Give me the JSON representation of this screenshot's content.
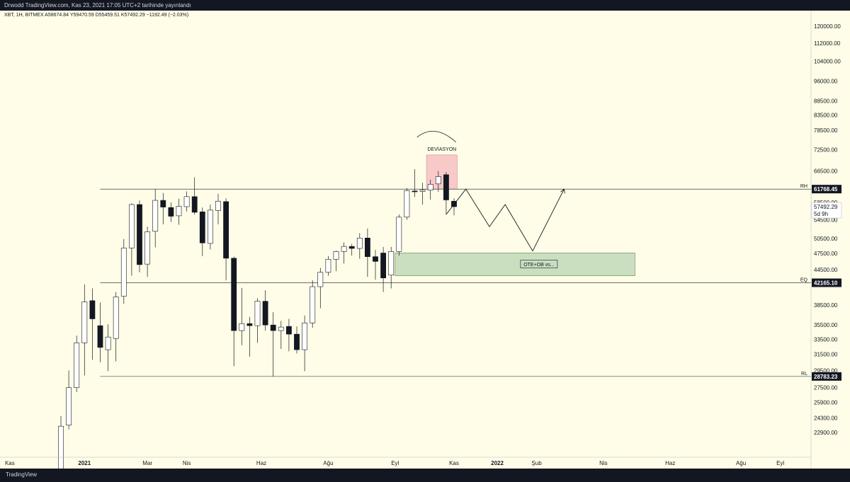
{
  "header": {
    "title": "Drwodd TradingView.com, Kas 23, 2021 17:05 UTC+2 tarihinde yayınlandı",
    "symbol_info": "XBT, 1H, BITMEX  A58674.84  Y59470.59  D55459.51  K57492.29  −1192.49 (−2.03%)"
  },
  "footer": {
    "logo": "TradingView"
  },
  "colors": {
    "background": "#fffde7",
    "bull_body": "#ffffff",
    "bear_body": "#131722",
    "deviation_zone": "#f8c9c9",
    "ote_zone": "#c9dfc0",
    "price_tag": "#131722"
  },
  "chart_data": {
    "type": "candlestick",
    "ylim": [
      21500,
      123500
    ],
    "y_ticks": [
      "120000.00",
      "112000.00",
      "104000.00",
      "96000.00",
      "88500.00",
      "83500.00",
      "78500.00",
      "72500.00",
      "66500.00",
      "58500.00",
      "54500.00",
      "50500.00",
      "47500.00",
      "44500.00",
      "38500.00",
      "35500.00",
      "33500.00",
      "31500.00",
      "29500.00",
      "27500.00",
      "25900.00",
      "24300.00",
      "22900.00"
    ],
    "x_labels": [
      "Kas",
      "2021",
      "Mar",
      "Nis",
      "Haz",
      "Ağu",
      "Eyl",
      "Kas",
      "2022",
      "Şub",
      "Nis",
      "Haz",
      "Ağu",
      "Eyl"
    ],
    "candles": [
      {
        "o": 19700,
        "h": 24500,
        "l": 18800,
        "c": 23500
      },
      {
        "o": 23600,
        "h": 29500,
        "l": 23200,
        "c": 27500
      },
      {
        "o": 27500,
        "h": 34000,
        "l": 27000,
        "c": 33000
      },
      {
        "o": 33000,
        "h": 41900,
        "l": 28900,
        "c": 39000
      },
      {
        "o": 39200,
        "h": 41200,
        "l": 30800,
        "c": 36400
      },
      {
        "o": 35400,
        "h": 38900,
        "l": 30500,
        "c": 32400
      },
      {
        "o": 32100,
        "h": 35600,
        "l": 29400,
        "c": 33800
      },
      {
        "o": 33600,
        "h": 40600,
        "l": 30600,
        "c": 39800
      },
      {
        "o": 39900,
        "h": 50400,
        "l": 38700,
        "c": 48600
      },
      {
        "o": 48600,
        "h": 58300,
        "l": 43400,
        "c": 58000
      },
      {
        "o": 58000,
        "h": 59000,
        "l": 44000,
        "c": 45400
      },
      {
        "o": 45500,
        "h": 53000,
        "l": 43200,
        "c": 51900
      },
      {
        "o": 52000,
        "h": 61700,
        "l": 48700,
        "c": 59000
      },
      {
        "o": 59000,
        "h": 60800,
        "l": 53500,
        "c": 57400
      },
      {
        "o": 57300,
        "h": 58500,
        "l": 54000,
        "c": 55300
      },
      {
        "o": 55400,
        "h": 59400,
        "l": 53400,
        "c": 57600
      },
      {
        "o": 57500,
        "h": 61200,
        "l": 56400,
        "c": 59900
      },
      {
        "o": 59900,
        "h": 64800,
        "l": 55700,
        "c": 56200
      },
      {
        "o": 56300,
        "h": 57300,
        "l": 47000,
        "c": 49600
      },
      {
        "o": 49500,
        "h": 58000,
        "l": 48300,
        "c": 56700
      },
      {
        "o": 56600,
        "h": 60600,
        "l": 53500,
        "c": 58800
      },
      {
        "o": 58700,
        "h": 59500,
        "l": 42600,
        "c": 46600
      },
      {
        "o": 46600,
        "h": 46900,
        "l": 30000,
        "c": 34700
      },
      {
        "o": 34700,
        "h": 41300,
        "l": 32700,
        "c": 35700
      },
      {
        "o": 35700,
        "h": 36700,
        "l": 31200,
        "c": 35400
      },
      {
        "o": 35400,
        "h": 39600,
        "l": 33000,
        "c": 39100
      },
      {
        "o": 39100,
        "h": 40900,
        "l": 34700,
        "c": 35500
      },
      {
        "o": 35500,
        "h": 37400,
        "l": 28800,
        "c": 34700
      },
      {
        "o": 34700,
        "h": 36100,
        "l": 32200,
        "c": 35200
      },
      {
        "o": 35300,
        "h": 36400,
        "l": 31900,
        "c": 34200
      },
      {
        "o": 34200,
        "h": 35300,
        "l": 31600,
        "c": 32100
      },
      {
        "o": 32100,
        "h": 36900,
        "l": 29400,
        "c": 35800
      },
      {
        "o": 35800,
        "h": 42600,
        "l": 35100,
        "c": 41500
      },
      {
        "o": 41500,
        "h": 44800,
        "l": 38000,
        "c": 44000
      },
      {
        "o": 44000,
        "h": 47000,
        "l": 43400,
        "c": 46400
      },
      {
        "o": 46400,
        "h": 48100,
        "l": 44200,
        "c": 47900
      },
      {
        "o": 47900,
        "h": 49700,
        "l": 45600,
        "c": 48900
      },
      {
        "o": 48900,
        "h": 49400,
        "l": 47100,
        "c": 48500
      },
      {
        "o": 48500,
        "h": 51600,
        "l": 46500,
        "c": 50600
      },
      {
        "o": 50600,
        "h": 52600,
        "l": 43200,
        "c": 46900
      },
      {
        "o": 46900,
        "h": 48200,
        "l": 42700,
        "c": 46000
      },
      {
        "o": 47600,
        "h": 48800,
        "l": 40600,
        "c": 43000
      },
      {
        "o": 43500,
        "h": 48800,
        "l": 41200,
        "c": 47900
      },
      {
        "o": 47900,
        "h": 55700,
        "l": 47100,
        "c": 55100
      },
      {
        "o": 55100,
        "h": 62000,
        "l": 54500,
        "c": 61400
      },
      {
        "o": 61300,
        "h": 67000,
        "l": 59800,
        "c": 61200
      },
      {
        "o": 61200,
        "h": 63400,
        "l": 58000,
        "c": 61500
      },
      {
        "o": 61500,
        "h": 64200,
        "l": 59200,
        "c": 63000
      },
      {
        "o": 63100,
        "h": 66500,
        "l": 61100,
        "c": 65000
      },
      {
        "o": 65500,
        "h": 66200,
        "l": 55700,
        "c": 59100
      },
      {
        "o": 58800,
        "h": 59500,
        "l": 55500,
        "c": 57500
      }
    ],
    "levels": [
      {
        "label": "RH",
        "value": "61768.45",
        "y": 61768.45
      },
      {
        "label": "EQ",
        "value": "42165.10",
        "y": 42165.1
      },
      {
        "label": "RL",
        "value": "28783.23",
        "y": 28783.23
      }
    ],
    "current_price": "57492.29",
    "countdown": "5d 9h",
    "annotations": {
      "deviation_label": "DEVİASYON",
      "ote_label": "OTE+OB vs..."
    },
    "projection": [
      {
        "t": 49,
        "p": 55700
      },
      {
        "t": 51.5,
        "p": 61768
      },
      {
        "t": 54.5,
        "p": 53000
      },
      {
        "t": 56.5,
        "p": 58000
      },
      {
        "t": 60,
        "p": 48000
      },
      {
        "t": 64,
        "p": 61768
      }
    ],
    "zones": {
      "deviation": {
        "t0": 46.5,
        "t1": 50.4,
        "p0": 61768,
        "p1": 71000
      },
      "ote": {
        "t0": 42.5,
        "t1": 73,
        "p0": 43400,
        "p1": 47600
      }
    }
  }
}
